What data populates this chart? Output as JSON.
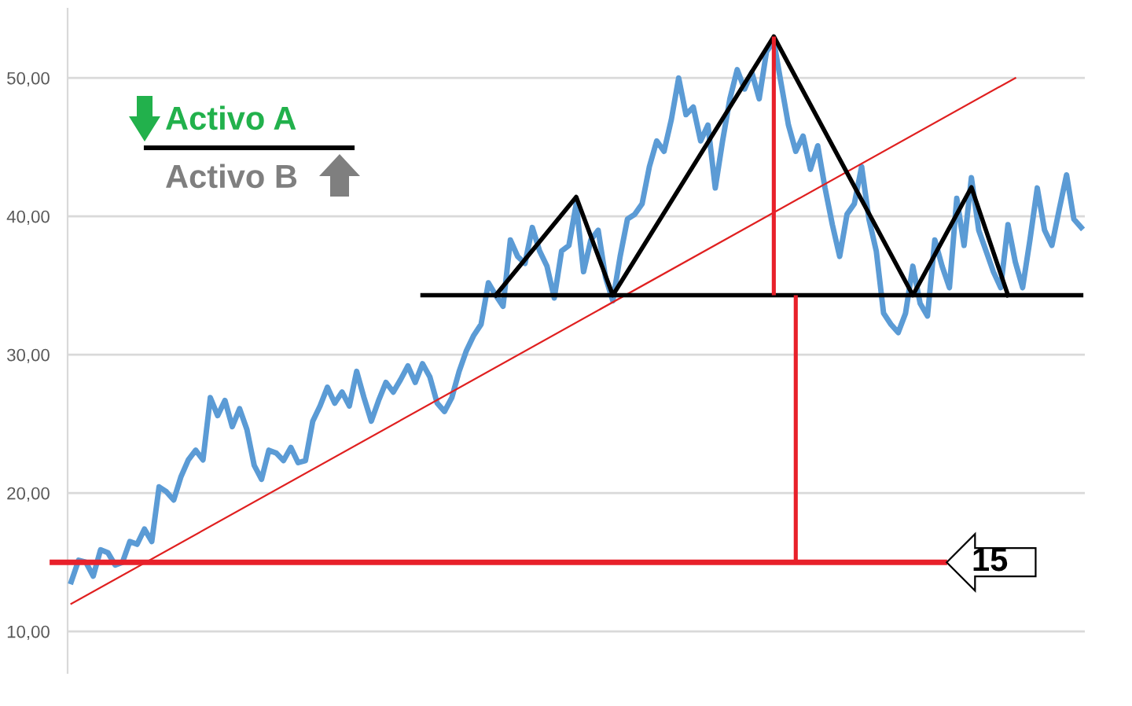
{
  "chart_data": {
    "type": "line",
    "categories": [
      null,
      null,
      null,
      null,
      null,
      null,
      null,
      null,
      null,
      null,
      null,
      null,
      null,
      null,
      null,
      null,
      null,
      null,
      null,
      null,
      null,
      null,
      null,
      null,
      null,
      null,
      null,
      null,
      null,
      null,
      null,
      null,
      null,
      null,
      null,
      null,
      null,
      null,
      null,
      null,
      null,
      null,
      null,
      null,
      null,
      null,
      null,
      null,
      null,
      null,
      null,
      null,
      null,
      null,
      null,
      null,
      null,
      null,
      null,
      null,
      null,
      null,
      null,
      null,
      null,
      null,
      null,
      null,
      null,
      null,
      null,
      null,
      null,
      null,
      null,
      null,
      null,
      null,
      null,
      null,
      null,
      null,
      null,
      null,
      null,
      null,
      null,
      null,
      null,
      null,
      null,
      null,
      null,
      null,
      null,
      null,
      null,
      null,
      null,
      null,
      null,
      null,
      null,
      null,
      null,
      null,
      null,
      null,
      null,
      null,
      null,
      null,
      null,
      null,
      null,
      null,
      null,
      null,
      null,
      null,
      null,
      null,
      null,
      null,
      null,
      null,
      null,
      null,
      null,
      null,
      null,
      null,
      null,
      null,
      null,
      null,
      null,
      null,
      null
    ],
    "series": [
      {
        "color": "#5b9bd5",
        "values": [
          13.6,
          15.15,
          15.0,
          14.0,
          15.9,
          15.7,
          14.8,
          15.0,
          16.5,
          16.3,
          17.4,
          16.5,
          20.45,
          20.1,
          19.5,
          21.2,
          22.4,
          23.1,
          22.4,
          26.9,
          25.6,
          26.7,
          24.8,
          26.1,
          24.6,
          22.0,
          21.0,
          23.1,
          22.9,
          22.35,
          23.3,
          22.2,
          22.35,
          25.2,
          26.3,
          27.65,
          26.5,
          27.3,
          26.3,
          28.8,
          26.9,
          25.2,
          26.7,
          28.0,
          27.3,
          28.2,
          29.2,
          28.0,
          29.35,
          28.4,
          26.5,
          25.9,
          26.9,
          28.8,
          30.3,
          31.4,
          32.2,
          35.2,
          34.3,
          33.5,
          38.3,
          37.1,
          36.6,
          39.2,
          37.5,
          36.4,
          34.1,
          37.5,
          37.9,
          40.9,
          36.0,
          38.3,
          39.0,
          35.6,
          33.9,
          37.1,
          39.8,
          40.15,
          40.9,
          43.6,
          45.45,
          44.7,
          47.0,
          50.0,
          47.35,
          47.9,
          45.45,
          46.6,
          42.05,
          45.45,
          48.5,
          50.6,
          49.2,
          50.4,
          48.5,
          51.9,
          52.65,
          49.6,
          46.6,
          44.7,
          45.8,
          43.4,
          45.1,
          42.05,
          39.4,
          37.1,
          40.15,
          40.9,
          43.6,
          39.8,
          37.5,
          33.0,
          32.2,
          31.6,
          33.0,
          36.4,
          33.7,
          32.8,
          38.3,
          36.4,
          34.85,
          41.3,
          37.9,
          42.8,
          39.0,
          37.5,
          36.0,
          34.85,
          39.4,
          36.7,
          34.85,
          38.3,
          42.05,
          39.0,
          37.9,
          40.5,
          43.0,
          39.8,
          39.2
        ]
      },
      {
        "color": "#e02020",
        "values": [
          12.0,
          null,
          null,
          null,
          null,
          null,
          null,
          null,
          null,
          null,
          null,
          null,
          null,
          null,
          null,
          null,
          null,
          null,
          null,
          null,
          null,
          null,
          null,
          null,
          null,
          null,
          null,
          null,
          null,
          null,
          null,
          null,
          null,
          null,
          null,
          null,
          null,
          null,
          null,
          null,
          null,
          null,
          null,
          null,
          null,
          null,
          null,
          null,
          null,
          null,
          null,
          null,
          null,
          null,
          null,
          null,
          null,
          null,
          null,
          null,
          null,
          null,
          null,
          null,
          null,
          null,
          null,
          null,
          null,
          null,
          null,
          null,
          null,
          null,
          null,
          null,
          null,
          null,
          null,
          null,
          null,
          null,
          null,
          null,
          null,
          null,
          null,
          null,
          null,
          null,
          null,
          null,
          null,
          null,
          null,
          null,
          null,
          null,
          null,
          null,
          null,
          null,
          null,
          null,
          null,
          null,
          null,
          null,
          null,
          null,
          null,
          null,
          null,
          null,
          null,
          null,
          null,
          null,
          null,
          null,
          null,
          null,
          null,
          null,
          null,
          null,
          null,
          null,
          null,
          50.0,
          null,
          null,
          null,
          null,
          null,
          null,
          null,
          null,
          null
        ]
      },
      {
        "color": "#000000",
        "values": [
          null,
          null,
          null,
          null,
          null,
          null,
          null,
          null,
          null,
          null,
          null,
          null,
          null,
          null,
          null,
          null,
          null,
          null,
          null,
          null,
          null,
          null,
          null,
          null,
          null,
          null,
          null,
          null,
          null,
          null,
          null,
          null,
          null,
          null,
          null,
          null,
          null,
          null,
          null,
          null,
          null,
          null,
          null,
          null,
          null,
          null,
          null,
          null,
          34.3,
          null,
          null,
          null,
          null,
          null,
          null,
          null,
          null,
          null,
          null,
          null,
          null,
          null,
          null,
          null,
          null,
          null,
          null,
          null,
          null,
          null,
          null,
          null,
          null,
          null,
          null,
          null,
          null,
          null,
          null,
          null,
          null,
          null,
          null,
          null,
          null,
          null,
          null,
          null,
          null,
          null,
          null,
          null,
          null,
          null,
          null,
          null,
          null,
          null,
          null,
          null,
          null,
          null,
          null,
          null,
          null,
          null,
          null,
          null,
          null,
          null,
          null,
          null,
          null,
          null,
          null,
          null,
          null,
          null,
          null,
          null,
          null,
          null,
          null,
          null,
          null,
          null,
          null,
          null,
          null,
          null,
          null,
          null,
          null,
          null,
          null,
          null,
          null,
          null,
          34.3
        ]
      },
      {
        "color": "#000000",
        "values": [
          null,
          null,
          null,
          null,
          null,
          null,
          null,
          null,
          null,
          null,
          null,
          null,
          null,
          null,
          null,
          null,
          null,
          null,
          null,
          null,
          null,
          null,
          null,
          null,
          null,
          null,
          null,
          null,
          null,
          null,
          null,
          null,
          null,
          null,
          null,
          null,
          null,
          null,
          null,
          null,
          null,
          null,
          null,
          null,
          null,
          null,
          null,
          null,
          null,
          null,
          null,
          null,
          null,
          null,
          null,
          null,
          null,
          null,
          34.3,
          null,
          null,
          null,
          null,
          null,
          null,
          null,
          null,
          null,
          null,
          41.4,
          null,
          null,
          null,
          null,
          34.3,
          null,
          null,
          null,
          null,
          null,
          null,
          null,
          null,
          null,
          null,
          null,
          null,
          null,
          null,
          null,
          null,
          null,
          null,
          null,
          null,
          null,
          53,
          null,
          null,
          null,
          null,
          null,
          null,
          null,
          null,
          null,
          null,
          null,
          null,
          null,
          null,
          null,
          null,
          null,
          null,
          34.3,
          null,
          null,
          null,
          null,
          null,
          null,
          null,
          42.1,
          null,
          null,
          null,
          null,
          34.3,
          null,
          null,
          null,
          null,
          null,
          null,
          null,
          null,
          null,
          null
        ]
      },
      {
        "type": "bar",
        "color": "#e8202a",
        "base": [
          null,
          null,
          null,
          null,
          null,
          null,
          null,
          null,
          null,
          null,
          null,
          null,
          null,
          null,
          null,
          null,
          null,
          null,
          null,
          null,
          null,
          null,
          null,
          null,
          null,
          null,
          null,
          null,
          null,
          null,
          null,
          null,
          null,
          null,
          null,
          null,
          null,
          null,
          null,
          null,
          null,
          null,
          null,
          null,
          null,
          null,
          null,
          null,
          null,
          null,
          null,
          null,
          null,
          null,
          null,
          null,
          null,
          null,
          null,
          null,
          null,
          null,
          null,
          null,
          null,
          null,
          null,
          null,
          null,
          null,
          null,
          null,
          null,
          null,
          null,
          null,
          null,
          null,
          null,
          null,
          null,
          null,
          null,
          null,
          null,
          null,
          null,
          null,
          null,
          null,
          null,
          null,
          null,
          null,
          null,
          null,
          34.3,
          null,
          null,
          15,
          null,
          null,
          null,
          null,
          null,
          null,
          null,
          null,
          null,
          null,
          null,
          null,
          null,
          null,
          null,
          null,
          null,
          null,
          null,
          null,
          null,
          null,
          null,
          null,
          null,
          null,
          null,
          null,
          null,
          null,
          null,
          null,
          null,
          null,
          null,
          null,
          null,
          null,
          null
        ],
        "values": [
          null,
          null,
          null,
          null,
          null,
          null,
          null,
          null,
          null,
          null,
          null,
          null,
          null,
          null,
          null,
          null,
          null,
          null,
          null,
          null,
          null,
          null,
          null,
          null,
          null,
          null,
          null,
          null,
          null,
          null,
          null,
          null,
          null,
          null,
          null,
          null,
          null,
          null,
          null,
          null,
          null,
          null,
          null,
          null,
          null,
          null,
          null,
          null,
          null,
          null,
          null,
          null,
          null,
          null,
          null,
          null,
          null,
          null,
          null,
          null,
          null,
          null,
          null,
          null,
          null,
          null,
          null,
          null,
          null,
          null,
          null,
          null,
          null,
          null,
          null,
          null,
          null,
          null,
          null,
          null,
          null,
          null,
          null,
          null,
          null,
          null,
          null,
          null,
          null,
          null,
          null,
          null,
          null,
          null,
          null,
          null,
          18.7,
          null,
          null,
          19.3,
          null,
          null,
          null,
          null,
          null,
          null,
          null,
          null,
          null,
          null,
          null,
          null,
          null,
          null,
          null,
          null,
          null,
          null,
          null,
          null,
          null,
          null,
          null,
          null,
          null,
          null,
          null,
          null,
          null,
          null,
          null,
          null,
          null,
          null,
          null,
          null,
          null,
          null,
          null
        ]
      }
    ],
    "ylim": [
      7,
      55
    ],
    "yticks": [
      {
        "value": 10,
        "label": "10,00"
      },
      {
        "value": 20,
        "label": "20,00"
      },
      {
        "value": 30,
        "label": "30,00"
      },
      {
        "value": 40,
        "label": "40,00"
      },
      {
        "value": 50,
        "label": "50,00"
      }
    ],
    "tick_labels": "y",
    "grid": "y",
    "ref_lines": [
      {
        "axis": "y",
        "value": 15,
        "label": "15",
        "color": "#e8202a"
      }
    ],
    "annotations": [
      "Activo A",
      "Activo B"
    ]
  }
}
